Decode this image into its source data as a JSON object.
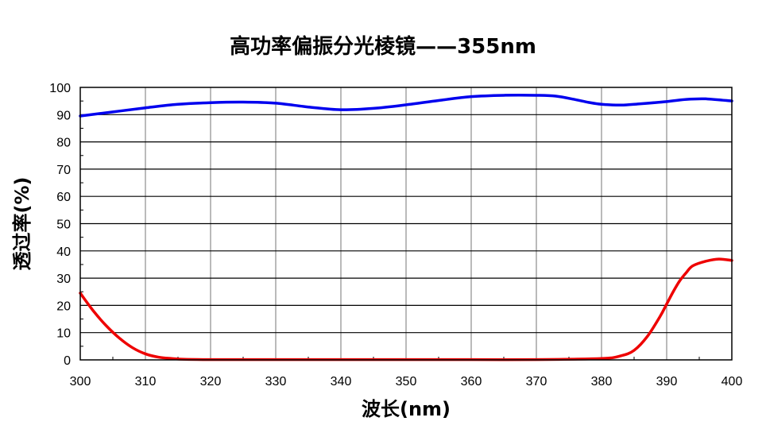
{
  "chart_data": {
    "type": "line",
    "title": "高功率偏振分光棱镜——355nm",
    "xlabel": "波长(nm)",
    "ylabel": "透过率(%)",
    "xlim": [
      300,
      400
    ],
    "ylim": [
      0,
      100
    ],
    "x_ticks": [
      300,
      310,
      320,
      330,
      340,
      350,
      360,
      370,
      380,
      390,
      400
    ],
    "y_ticks": [
      0,
      10,
      20,
      30,
      40,
      50,
      60,
      70,
      80,
      90,
      100
    ],
    "grid": true,
    "series": [
      {
        "color": "#0000ee",
        "x": [
          300,
          305,
          310,
          315,
          320,
          325,
          330,
          335,
          340,
          345,
          350,
          355,
          360,
          365,
          370,
          373,
          376,
          378,
          380,
          383,
          386,
          390,
          393,
          396,
          400
        ],
        "y": [
          89.5,
          91,
          92.5,
          93.8,
          94.4,
          94.6,
          94.2,
          92.8,
          91.8,
          92.3,
          93.6,
          95.2,
          96.6,
          97.1,
          97.1,
          96.8,
          95.5,
          94.5,
          93.8,
          93.5,
          94,
          94.8,
          95.6,
          95.8,
          95
        ]
      },
      {
        "color": "#ee0000",
        "x": [
          300,
          302,
          304,
          306,
          308,
          310,
          312,
          314,
          316,
          320,
          330,
          340,
          350,
          360,
          370,
          380,
          383,
          385,
          387,
          389,
          390,
          391,
          392,
          393,
          394,
          396,
          398,
          400
        ],
        "y": [
          24.5,
          18,
          12.5,
          8,
          4.5,
          2.2,
          1,
          0.5,
          0.2,
          0.1,
          0.1,
          0.1,
          0.1,
          0.1,
          0.1,
          0.5,
          1.5,
          3.5,
          8.5,
          16,
          20.5,
          25,
          29,
          32,
          34.5,
          36.2,
          37,
          36.5
        ]
      }
    ]
  }
}
